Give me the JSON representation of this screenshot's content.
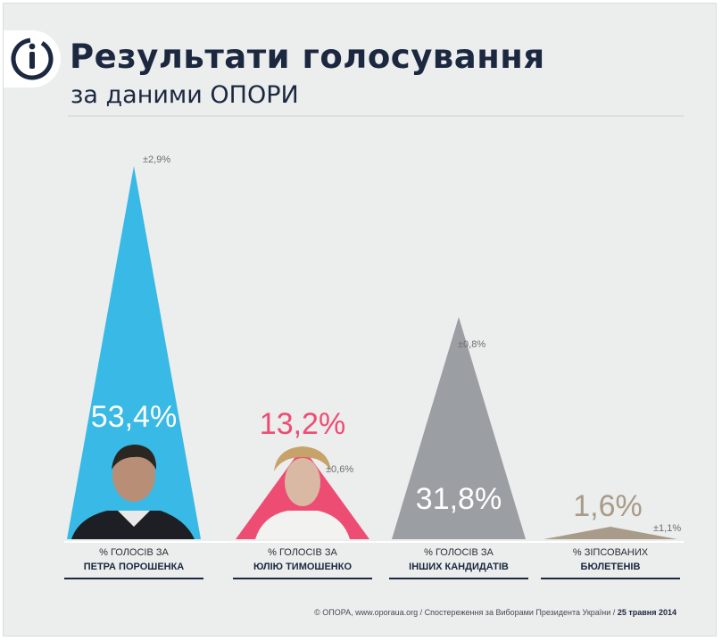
{
  "header": {
    "title": "Результати голосування",
    "subtitle": "за даними ОПОРИ"
  },
  "footer": {
    "source": "© ОПОРА, www.oporaua.org / Спостереження за Виборами Президента України /",
    "date": "25 травня 2014"
  },
  "colors": {
    "background": "#eceded",
    "title": "#1b2840",
    "poroshenko": "#38b9e6",
    "tymoshenko": "#ee4d73",
    "others": "#9b9ea3",
    "spoiled": "#a89b89"
  },
  "chart_data": {
    "type": "bar",
    "shape": "triangle",
    "categories": [
      {
        "line1": "% ГОЛОСІВ ЗА",
        "line2": "ПЕТРА ПОРОШЕНКА"
      },
      {
        "line1": "% ГОЛОСІВ ЗА",
        "line2": "ЮЛІЮ ТИМОШЕНКО"
      },
      {
        "line1": "% ГОЛОСІВ ЗА",
        "line2": "ІНШИХ КАНДИДАТІВ"
      },
      {
        "line1": "% ЗІПСОВАНИХ",
        "line2": "БЮЛЕТЕНІВ"
      }
    ],
    "values": [
      53.4,
      13.2,
      31.8,
      1.6
    ],
    "value_labels": [
      "53,4%",
      "13,2%",
      "31,8%",
      "1,6%"
    ],
    "margins": [
      "±2,9%",
      "±0,6%",
      "±0,8%",
      "±1,1%"
    ],
    "colors": [
      "#38b9e6",
      "#ee4d73",
      "#9b9ea3",
      "#a89b89"
    ],
    "ylim": [
      0,
      53.4
    ]
  }
}
